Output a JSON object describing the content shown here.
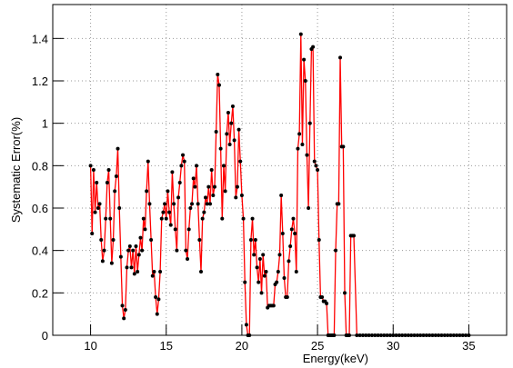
{
  "chart_data": {
    "type": "line",
    "xlabel": "Energy(keV)",
    "ylabel": "Systematic Error(%)",
    "xlim": [
      7.5,
      37.5
    ],
    "xticks": [
      10,
      15,
      20,
      25,
      30,
      35
    ],
    "ylim": [
      0,
      1.56
    ],
    "yticks": [
      0,
      0.2,
      0.4,
      0.6,
      0.8,
      1,
      1.2,
      1.4
    ],
    "grid": true,
    "x": [
      10,
      10.1,
      10.2,
      10.3,
      10.4,
      10.5,
      10.6,
      10.7,
      10.8,
      10.9,
      11,
      11.1,
      11.2,
      11.3,
      11.4,
      11.5,
      11.6,
      11.7,
      11.8,
      11.9,
      12,
      12.1,
      12.2,
      12.3,
      12.4,
      12.5,
      12.6,
      12.7,
      12.8,
      12.9,
      13,
      13.1,
      13.2,
      13.3,
      13.4,
      13.5,
      13.6,
      13.7,
      13.8,
      13.9,
      14,
      14.1,
      14.2,
      14.3,
      14.4,
      14.5,
      14.6,
      14.7,
      14.8,
      14.9,
      15,
      15.1,
      15.2,
      15.3,
      15.4,
      15.5,
      15.6,
      15.7,
      15.8,
      15.9,
      16,
      16.1,
      16.2,
      16.3,
      16.4,
      16.5,
      16.6,
      16.7,
      16.8,
      16.9,
      17,
      17.1,
      17.2,
      17.3,
      17.4,
      17.5,
      17.6,
      17.7,
      17.8,
      17.9,
      18,
      18.1,
      18.2,
      18.3,
      18.4,
      18.5,
      18.6,
      18.7,
      18.8,
      18.9,
      19,
      19.1,
      19.2,
      19.3,
      19.4,
      19.5,
      19.6,
      19.7,
      19.8,
      19.9,
      20,
      20.1,
      20.2,
      20.3,
      20.4,
      20.5,
      20.6,
      20.7,
      20.8,
      20.9,
      21,
      21.1,
      21.2,
      21.3,
      21.4,
      21.5,
      21.6,
      21.7,
      21.8,
      21.9,
      22,
      22.1,
      22.2,
      22.3,
      22.4,
      22.5,
      22.6,
      22.7,
      22.8,
      22.9,
      23,
      23.1,
      23.2,
      23.3,
      23.4,
      23.5,
      23.6,
      23.7,
      23.8,
      23.9,
      24,
      24.1,
      24.2,
      24.3,
      24.4,
      24.5,
      24.6,
      24.7,
      24.8,
      24.9,
      25,
      25.1,
      25.2,
      25.3,
      25.4,
      25.5,
      25.6,
      25.7,
      25.8,
      25.9,
      26,
      26.1,
      26.2,
      26.3,
      26.4,
      26.5,
      26.6,
      26.7,
      26.8,
      26.9,
      27,
      27.1,
      27.2,
      27.3,
      27.4,
      27.6,
      27.8,
      28,
      28.2,
      28.4,
      28.6,
      28.8,
      29,
      29.2,
      29.4,
      29.6,
      29.8,
      30,
      30.2,
      30.4,
      30.6,
      30.8,
      31,
      31.2,
      31.4,
      31.6,
      31.8,
      32,
      32.2,
      32.4,
      32.6,
      32.8,
      33,
      33.2,
      33.4,
      33.6,
      33.8,
      34,
      34.2,
      34.4,
      34.6,
      34.8,
      35
    ],
    "series": [
      {
        "color": "#ff0000",
        "marker_color": "#000000",
        "values": [
          0.8,
          0.48,
          0.78,
          0.58,
          0.72,
          0.6,
          0.62,
          0.45,
          0.35,
          0.4,
          0.55,
          0.72,
          0.78,
          0.55,
          0.34,
          0.45,
          0.68,
          0.75,
          0.88,
          0.6,
          0.37,
          0.14,
          0.08,
          0.12,
          0.32,
          0.4,
          0.42,
          0.32,
          0.4,
          0.29,
          0.42,
          0.3,
          0.38,
          0.46,
          0.4,
          0.55,
          0.5,
          0.68,
          0.82,
          0.62,
          0.45,
          0.28,
          0.3,
          0.18,
          0.1,
          0.17,
          0.3,
          0.55,
          0.58,
          0.62,
          0.55,
          0.68,
          0.58,
          0.52,
          0.77,
          0.62,
          0.5,
          0.4,
          0.65,
          0.72,
          0.8,
          0.85,
          0.82,
          0.4,
          0.36,
          0.5,
          0.6,
          0.62,
          0.74,
          0.7,
          0.8,
          0.62,
          0.45,
          0.3,
          0.55,
          0.58,
          0.65,
          0.62,
          0.7,
          0.62,
          0.78,
          0.66,
          0.7,
          0.96,
          1.23,
          1.18,
          0.88,
          0.55,
          0.8,
          0.68,
          0.95,
          1.05,
          0.9,
          1.0,
          1.08,
          0.92,
          0.65,
          0.7,
          0.97,
          0.82,
          0.66,
          0.55,
          0.25,
          0.05,
          0,
          0,
          0.45,
          0.55,
          0.38,
          0.45,
          0.32,
          0.25,
          0.36,
          0.2,
          0.38,
          0.28,
          0.3,
          0.13,
          0.14,
          0.14,
          0.14,
          0.14,
          0.24,
          0.25,
          0.3,
          0.38,
          0.66,
          0.48,
          0.27,
          0.18,
          0.18,
          0.35,
          0.42,
          0.5,
          0.55,
          0.48,
          0.3,
          0.88,
          0.95,
          1.42,
          0.9,
          1.3,
          1.2,
          0.85,
          0.6,
          1.0,
          1.35,
          1.36,
          0.82,
          0.8,
          0.78,
          0.45,
          0.18,
          0.18,
          0.16,
          0.16,
          0.15,
          0,
          0,
          0,
          0,
          0,
          0.4,
          0.62,
          0.62,
          1.31,
          0.89,
          0.89,
          0.2,
          0,
          0,
          0,
          0.47,
          0.47,
          0.47,
          0,
          0,
          0,
          0,
          0,
          0,
          0,
          0,
          0,
          0,
          0,
          0,
          0,
          0,
          0,
          0,
          0,
          0,
          0,
          0,
          0,
          0,
          0,
          0,
          0,
          0,
          0,
          0,
          0,
          0,
          0,
          0,
          0,
          0,
          0,
          0,
          0,
          0
        ]
      }
    ]
  }
}
